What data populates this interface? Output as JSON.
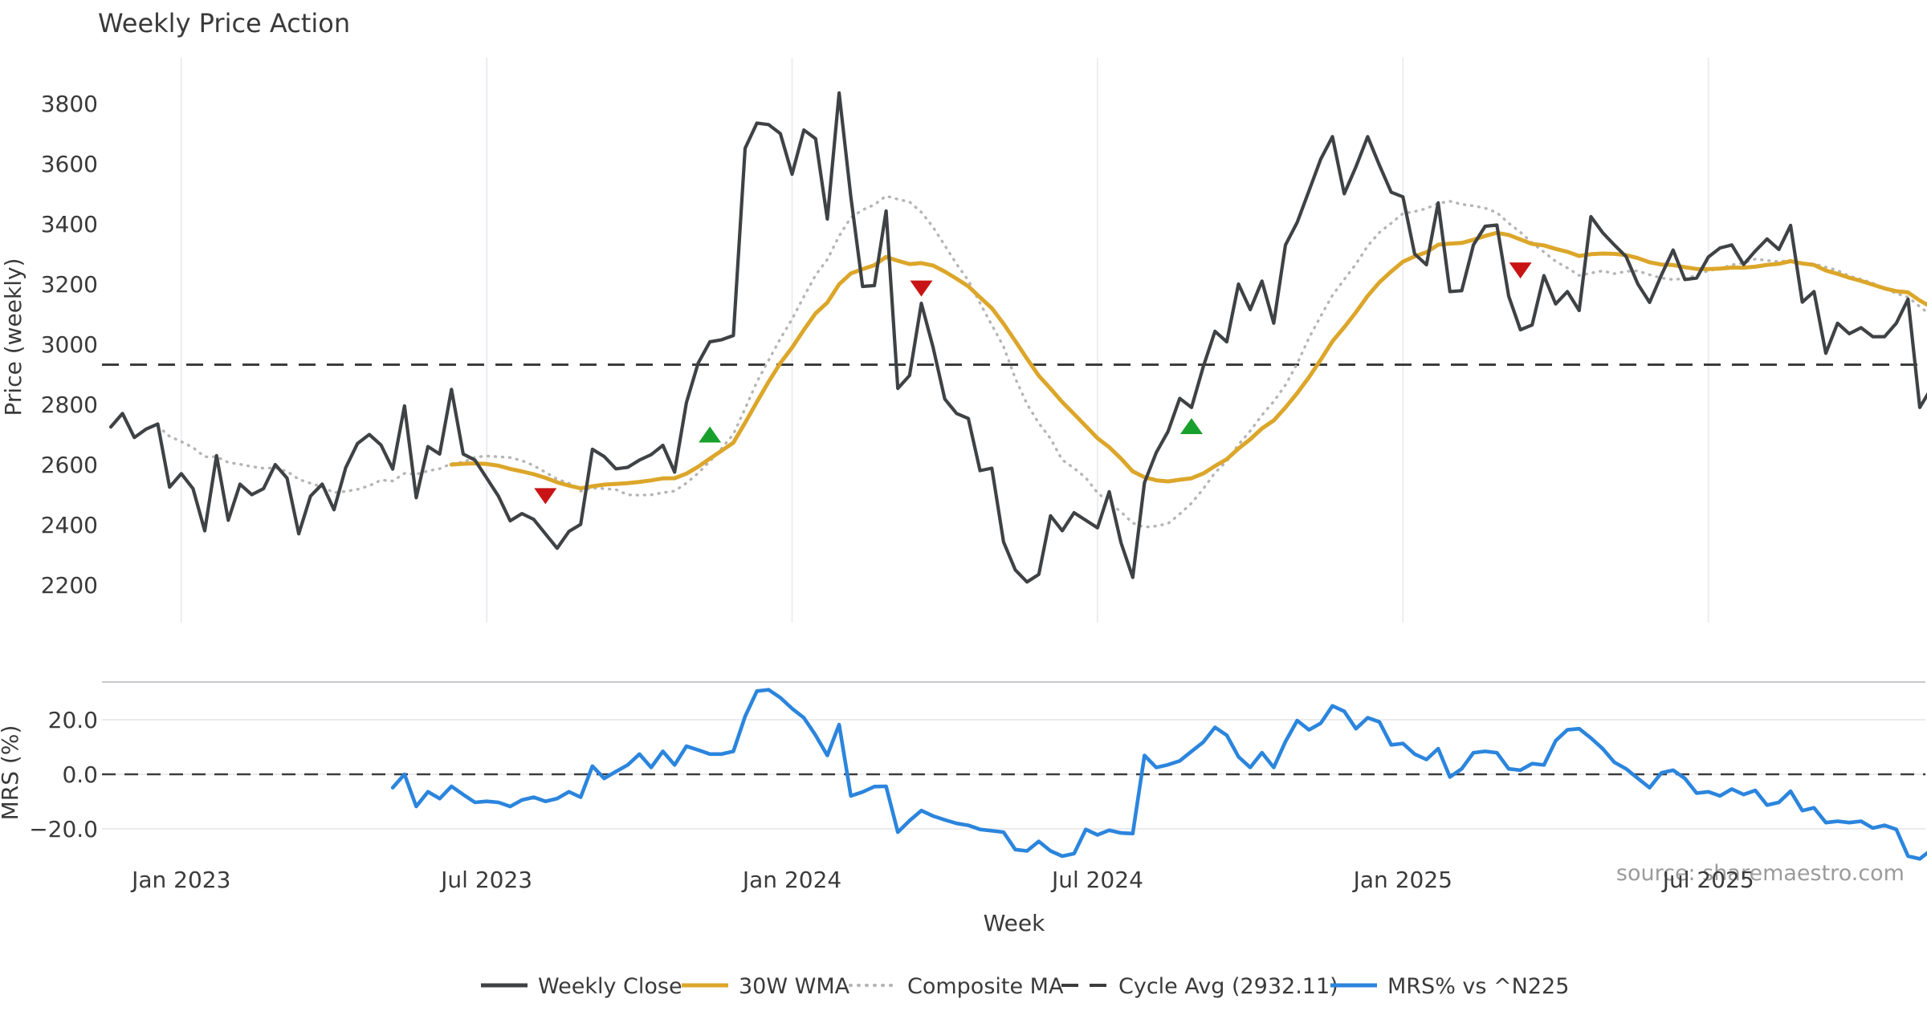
{
  "chart": {
    "title": "Weekly Price Action",
    "source_note": "source: sharemaestro.com",
    "x_axis_title": "Week",
    "price_axis_title": "Price (weekly)",
    "mrs_axis_title": "MRS (%)"
  },
  "legend": {
    "items": [
      {
        "label": "Weekly Close",
        "color": "#3f4245",
        "dash": "",
        "width": 5
      },
      {
        "label": "30W WMA",
        "color": "#dca62a",
        "dash": "",
        "width": 5
      },
      {
        "label": "Composite MA",
        "color": "#b5b5b5",
        "dash": "1 9",
        "width": 4
      },
      {
        "label": "Cycle Avg (2932.11)",
        "color": "#3c3c3c",
        "dash": "21 14",
        "width": 4
      },
      {
        "label": "MRS% vs ^N225",
        "color": "#2b85dd",
        "dash": "",
        "width": 5
      }
    ]
  },
  "chart_data": [
    {
      "type": "line",
      "panel": "price",
      "title": "Weekly Price Action",
      "xlabel": "Week",
      "ylabel": "Price (weekly)",
      "ylim": [
        2085,
        3944
      ],
      "grid": "vertical-only",
      "x_ticks": [
        {
          "week": 6,
          "label": "Jan 2023"
        },
        {
          "week": 32,
          "label": "Jul 2023"
        },
        {
          "week": 58,
          "label": "Jan 2024"
        },
        {
          "week": 84,
          "label": "Jul 2024"
        },
        {
          "week": 110,
          "label": "Jan 2025"
        },
        {
          "week": 136,
          "label": "Jul 2025"
        }
      ],
      "y_ticks": [
        {
          "value": 3800,
          "label": "3800"
        },
        {
          "value": 3600,
          "label": "3600"
        },
        {
          "value": 3400,
          "label": "3400"
        },
        {
          "value": 3200,
          "label": "3200"
        },
        {
          "value": 3000,
          "label": "3000"
        },
        {
          "value": 2800,
          "label": "2800"
        },
        {
          "value": 2600,
          "label": "2600"
        },
        {
          "value": 2400,
          "label": "2400"
        },
        {
          "value": 2200,
          "label": "2200"
        }
      ],
      "series": [
        {
          "name": "Weekly Close",
          "color": "#3f4245",
          "style": "solid",
          "start_week": 0,
          "values": [
            2725,
            2770,
            2690,
            2718,
            2735,
            2525,
            2570,
            2520,
            2380,
            2630,
            2415,
            2535,
            2500,
            2520,
            2600,
            2555,
            2370,
            2495,
            2535,
            2450,
            2590,
            2670,
            2700,
            2665,
            2585,
            2795,
            2490,
            2660,
            2635,
            2850,
            2635,
            2615,
            2555,
            2495,
            2413,
            2437,
            2418,
            2370,
            2322,
            2378,
            2401,
            2651,
            2627,
            2586,
            2591,
            2615,
            2633,
            2664,
            2575,
            2806,
            2937,
            3008,
            3015,
            3029,
            3651,
            3735,
            3730,
            3700,
            3565,
            3712,
            3683,
            3416,
            3835,
            3490,
            3192,
            3195,
            3443,
            2853,
            2896,
            3136,
            2990,
            2818,
            2770,
            2753,
            2580,
            2588,
            2343,
            2250,
            2210,
            2235,
            2430,
            2380,
            2440,
            2415,
            2390,
            2510,
            2340,
            2225,
            2540,
            2640,
            2710,
            2820,
            2790,
            2925,
            3043,
            3008,
            3200,
            3115,
            3210,
            3070,
            3330,
            3405,
            3510,
            3615,
            3690,
            3500,
            3590,
            3690,
            3595,
            3505,
            3490,
            3300,
            3264,
            3470,
            3175,
            3178,
            3330,
            3392,
            3396,
            3160,
            3048,
            3064,
            3228,
            3134,
            3175,
            3112,
            3424,
            3371,
            3330,
            3291,
            3200,
            3139,
            3230,
            3313,
            3215,
            3220,
            3290,
            3320,
            3330,
            3265,
            3310,
            3350,
            3315,
            3395,
            3140,
            3175,
            2970,
            3070,
            3035,
            3055,
            3025,
            3025,
            3070,
            3150,
            2790,
            2855
          ]
        },
        {
          "name": "30W WMA",
          "color": "#dca62a",
          "style": "solid",
          "derived": "wma30"
        },
        {
          "name": "Composite MA",
          "color": "#b5b5b5",
          "style": "dotted",
          "derived": "sma15"
        },
        {
          "name": "Cycle Avg (2932.11)",
          "color": "#3c3c3c",
          "style": "dashed",
          "constant": 2932.11
        }
      ],
      "markers": [
        {
          "week": 37,
          "price": 2495,
          "type": "sell",
          "color": "#c81414"
        },
        {
          "week": 51,
          "price": 2700,
          "type": "buy",
          "color": "#18a02c"
        },
        {
          "week": 69,
          "price": 3185,
          "type": "sell",
          "color": "#c81414"
        },
        {
          "week": 92,
          "price": 2728,
          "type": "buy",
          "color": "#18a02c"
        },
        {
          "week": 120,
          "price": 3245,
          "type": "sell",
          "color": "#c81414"
        }
      ]
    },
    {
      "type": "line",
      "panel": "mrs",
      "ylabel": "MRS (%)",
      "ylim": [
        -33,
        34
      ],
      "zero_line": 0.0,
      "y_ticks": [
        {
          "value": 20,
          "label": "20.0"
        },
        {
          "value": 0,
          "label": "0.0"
        },
        {
          "value": -20,
          "label": "−20.0"
        }
      ],
      "series": [
        {
          "name": "MRS% vs ^N225",
          "color": "#2b85dd",
          "style": "solid",
          "start_week": 24,
          "values": [
            -4.9,
            0.0,
            -11.8,
            -6.4,
            -8.9,
            -4.4,
            -7.4,
            -10.3,
            -9.9,
            -10.3,
            -11.8,
            -9.4,
            -8.4,
            -9.9,
            -8.9,
            -6.4,
            -8.4,
            3.0,
            -1.5,
            1.0,
            3.4,
            7.4,
            2.5,
            8.4,
            3.4,
            10.3,
            8.9,
            7.4,
            7.4,
            8.4,
            21.2,
            30.5,
            31.0,
            28.1,
            24.1,
            20.7,
            14.3,
            6.9,
            18.2,
            -7.9,
            -6.5,
            -4.5,
            -4.4,
            -21.2,
            -17.0,
            -13.3,
            -15.3,
            -16.7,
            -18.0,
            -18.7,
            -20.2,
            -20.7,
            -21.2,
            -27.6,
            -28.1,
            -24.6,
            -28.1,
            -30.0,
            -29.1,
            -20.2,
            -22.2,
            -20.5,
            -21.5,
            -21.7,
            6.9,
            2.5,
            3.5,
            4.9,
            8.4,
            11.8,
            17.2,
            14.3,
            6.4,
            2.5,
            7.9,
            2.5,
            12.0,
            19.7,
            16.3,
            18.7,
            25.1,
            23.1,
            16.7,
            20.7,
            19.2,
            10.8,
            11.3,
            7.4,
            5.4,
            9.4,
            -1.0,
            2.0,
            7.9,
            8.4,
            7.9,
            2.0,
            1.5,
            3.9,
            3.4,
            12.3,
            16.3,
            16.7,
            13.3,
            9.4,
            4.4,
            2.0,
            -1.5,
            -4.9,
            0.5,
            1.5,
            -1.5,
            -6.9,
            -6.4,
            -7.9,
            -5.4,
            -7.4,
            -5.9,
            -11.3,
            -10.3,
            -6.2,
            -13.3,
            -12.3,
            -17.7,
            -17.2,
            -17.7,
            -17.2,
            -19.7,
            -18.7,
            -20.2,
            -30.0,
            -31.0,
            -27.6
          ]
        }
      ]
    }
  ]
}
